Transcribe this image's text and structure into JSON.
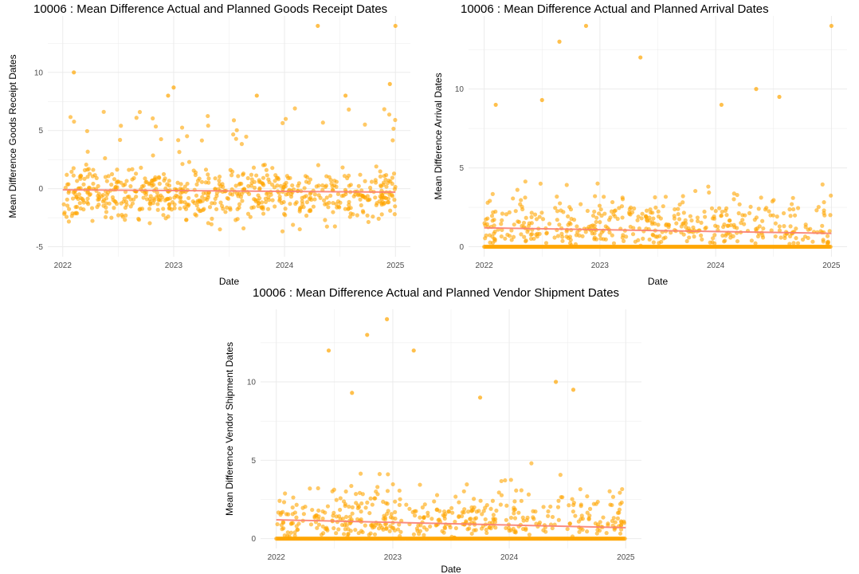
{
  "colors": {
    "point": "#ffa500",
    "trend": "#fa8072",
    "grid": "#ebebeb"
  },
  "chart_data": [
    {
      "type": "scatter",
      "title": "10006 : Mean Difference Actual and Planned Goods Receipt Dates",
      "xlabel": "Date",
      "ylabel": "Mean Difference Goods Receipt Dates",
      "xlim": [
        2022.0,
        2025.0
      ],
      "ylim": [
        -5.0,
        14.0
      ],
      "x_ticks": [
        2022,
        2023,
        2024,
        2025
      ],
      "y_ticks": [
        -5,
        0,
        5,
        10
      ],
      "grid": true,
      "trend": {
        "x": [
          2022.0,
          2025.0
        ],
        "y": [
          -0.1,
          -0.3
        ]
      },
      "highlighted_points": [
        {
          "x": 2022.1,
          "y": 10.0
        },
        {
          "x": 2022.95,
          "y": 8.0
        },
        {
          "x": 2023.0,
          "y": 8.7
        },
        {
          "x": 2023.75,
          "y": 8.0
        },
        {
          "x": 2024.3,
          "y": 14.0
        },
        {
          "x": 2024.55,
          "y": 8.0
        },
        {
          "x": 2024.95,
          "y": 9.0
        },
        {
          "x": 2025.0,
          "y": 14.0
        }
      ],
      "bulk_series": {
        "count": 700,
        "range": [
          -5.0,
          7.0
        ],
        "baseline": -0.5
      }
    },
    {
      "type": "scatter",
      "title": "10006 : Mean Difference Actual and Planned Arrival Dates",
      "xlabel": "Date",
      "ylabel": "Mean Difference Arrival Dates",
      "xlim": [
        2022.0,
        2025.0
      ],
      "ylim": [
        0.0,
        14.0
      ],
      "x_ticks": [
        2022,
        2023,
        2024,
        2025
      ],
      "y_ticks": [
        0,
        5,
        10
      ],
      "grid": true,
      "trend": {
        "x": [
          2022.0,
          2025.0
        ],
        "y": [
          1.2,
          0.85
        ]
      },
      "highlighted_points": [
        {
          "x": 2022.1,
          "y": 9.0
        },
        {
          "x": 2022.5,
          "y": 9.3
        },
        {
          "x": 2022.65,
          "y": 13.0
        },
        {
          "x": 2022.88,
          "y": 14.0
        },
        {
          "x": 2023.35,
          "y": 12.0
        },
        {
          "x": 2024.05,
          "y": 9.0
        },
        {
          "x": 2024.35,
          "y": 10.0
        },
        {
          "x": 2024.55,
          "y": 9.5
        },
        {
          "x": 2025.0,
          "y": 14.0
        }
      ],
      "bulk_series": {
        "count": 450,
        "range": [
          0.0,
          8.0
        ],
        "zero_count": 400
      }
    },
    {
      "type": "scatter",
      "title": "10006 : Mean Difference Actual and Planned Vendor Shipment Dates",
      "xlabel": "Date",
      "ylabel": "Mean Difference Vendor Shipment Dates",
      "xlim": [
        2022.0,
        2025.0
      ],
      "ylim": [
        0.0,
        14.0
      ],
      "x_ticks": [
        2022,
        2023,
        2024,
        2025
      ],
      "y_ticks": [
        0,
        5,
        10
      ],
      "grid": true,
      "trend": {
        "x": [
          2022.0,
          2025.0
        ],
        "y": [
          1.2,
          0.7
        ]
      },
      "highlighted_points": [
        {
          "x": 2022.45,
          "y": 12.0
        },
        {
          "x": 2022.65,
          "y": 9.3
        },
        {
          "x": 2022.78,
          "y": 13.0
        },
        {
          "x": 2022.95,
          "y": 14.0
        },
        {
          "x": 2023.18,
          "y": 12.0
        },
        {
          "x": 2023.75,
          "y": 9.0
        },
        {
          "x": 2024.4,
          "y": 10.0
        },
        {
          "x": 2024.55,
          "y": 9.5
        }
      ],
      "bulk_series": {
        "count": 450,
        "range": [
          0.0,
          8.0
        ],
        "zero_count": 400
      }
    }
  ]
}
